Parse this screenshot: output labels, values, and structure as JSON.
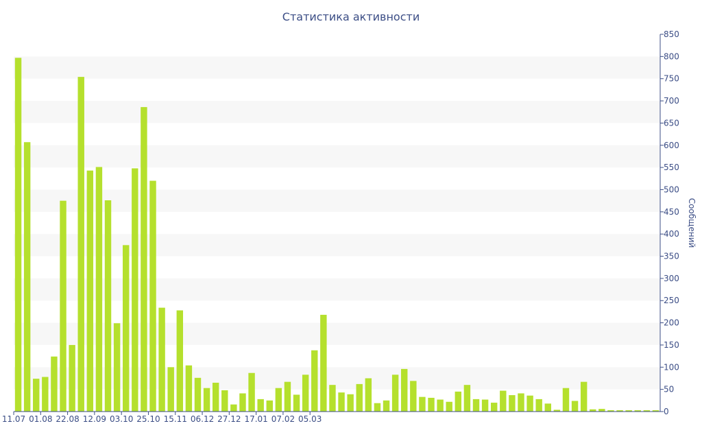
{
  "chart_data": {
    "type": "bar",
    "title": "Статистика активности",
    "xlabel": "",
    "ylabel": "Сообщений",
    "y_axis_side": "right",
    "ylim": [
      0,
      850
    ],
    "y_ticks": [
      0,
      50,
      100,
      150,
      200,
      250,
      300,
      350,
      400,
      450,
      500,
      550,
      600,
      650,
      700,
      750,
      800,
      850
    ],
    "x_tick_labels": [
      "11.07",
      "01.08",
      "22.08",
      "12.09",
      "03.10",
      "25.10",
      "15.11",
      "06.12",
      "27.12",
      "17.01",
      "07.02",
      "05.03"
    ],
    "x_tick_every_n_bars": 3,
    "bar_interval": "week",
    "grid": "alternating horizontal bands",
    "colors": {
      "bar": "#b5e02d",
      "band": "#f7f7f7",
      "text": "#3b4d85",
      "axis": "#3b4d85"
    },
    "values": [
      797,
      607,
      74,
      78,
      124,
      475,
      150,
      754,
      543,
      551,
      476,
      199,
      375,
      548,
      686,
      520,
      234,
      100,
      228,
      104,
      76,
      53,
      65,
      48,
      16,
      41,
      87,
      28,
      25,
      53,
      67,
      38,
      83,
      138,
      218,
      60,
      43,
      39,
      62,
      75,
      19,
      25,
      83,
      96,
      69,
      33,
      31,
      27,
      22,
      45,
      60,
      28,
      27,
      20,
      47,
      37,
      41,
      36,
      28,
      18,
      4,
      53,
      24,
      67,
      5,
      6,
      3,
      3,
      3,
      3,
      3,
      3
    ]
  }
}
